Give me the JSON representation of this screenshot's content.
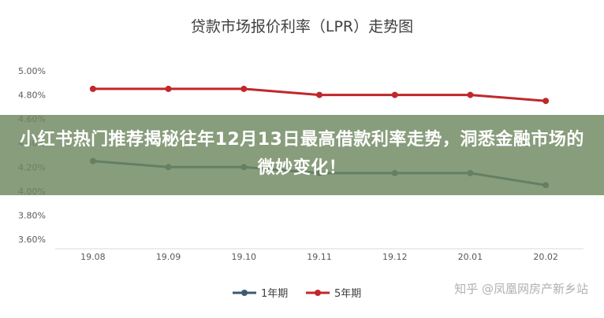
{
  "chart_data": {
    "type": "line",
    "title": "贷款市场报价利率（LPR）走势图",
    "categories": [
      "19.08",
      "19.09",
      "19.10",
      "19.11",
      "19.12",
      "20.01",
      "20.02"
    ],
    "series": [
      {
        "name": "1年期",
        "color": "#3d5a73",
        "values": [
          4.25,
          4.2,
          4.2,
          4.15,
          4.15,
          4.15,
          4.05
        ]
      },
      {
        "name": "5年期",
        "color": "#c0282b",
        "values": [
          4.85,
          4.85,
          4.85,
          4.8,
          4.8,
          4.8,
          4.75
        ]
      }
    ],
    "ylim": [
      3.6,
      5.0
    ],
    "yticks": [
      "3.60%",
      "3.80%",
      "4.00%",
      "4.20%",
      "4.40%",
      "4.60%",
      "4.80%",
      "5.00%"
    ],
    "legend_position": "bottom",
    "grid": false
  },
  "overlay": {
    "headline": "小红书热门推荐揭秘往年12月13日最高借款利率走势，洞悉金融市场的微妙变化！"
  },
  "watermark": "知乎 @凤凰网房产新乡站",
  "colors": {
    "overlay_bg": "#6e875f",
    "axis": "#d9d9d9"
  }
}
